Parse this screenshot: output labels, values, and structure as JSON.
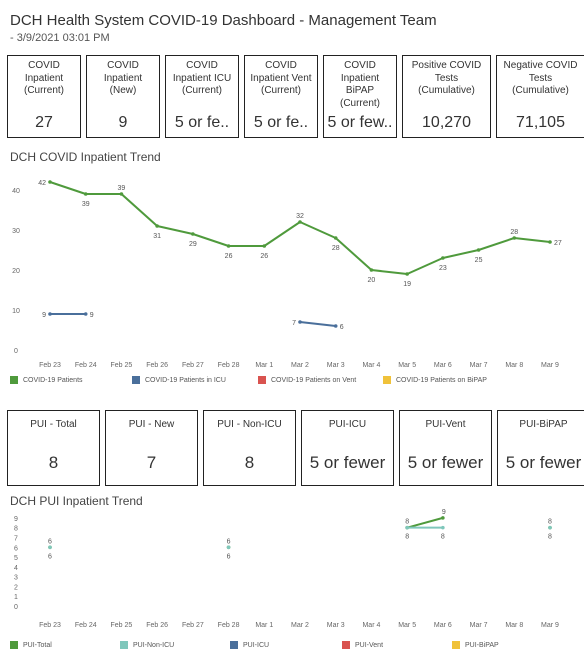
{
  "header": {
    "title": "DCH Health System COVID-19 Dashboard - Management Team",
    "subtitle": "- 3/9/2021 03:01 PM"
  },
  "kpi_row1": [
    {
      "label": "COVID\nInpatient\n(Current)",
      "value": "27"
    },
    {
      "label": "COVID\nInpatient\n(New)",
      "value": "9"
    },
    {
      "label": "COVID\nInpatient ICU\n(Current)",
      "value": "5 or fe.."
    },
    {
      "label": "COVID\nInpatient Vent\n(Current)",
      "value": "5 or fe.."
    },
    {
      "label": "COVID\nInpatient BiPAP\n(Current)",
      "value": "5 or few.."
    },
    {
      "label": "Positive COVID\nTests\n(Cumulative)",
      "value": "10,270"
    },
    {
      "label": "Negative COVID\nTests\n(Cumulative)",
      "value": "71,105"
    }
  ],
  "kpi_row2": [
    {
      "label": "PUI - Total",
      "value": "8"
    },
    {
      "label": "PUI - New",
      "value": "7"
    },
    {
      "label": "PUI - Non-ICU",
      "value": "8"
    },
    {
      "label": "PUI-ICU",
      "value": "5 or fewer"
    },
    {
      "label": "PUI-Vent",
      "value": "5 or fewer"
    },
    {
      "label": "PUI-BiPAP",
      "value": "5 or fewer"
    }
  ],
  "colors": {
    "green": "#4f9a3c",
    "blue": "#4a6f9b",
    "red": "#d9534f",
    "yellow": "#f0c23a",
    "teal": "#7fc7bb"
  },
  "chart_data": [
    {
      "type": "line",
      "title": "DCH COVID Inpatient Trend",
      "categories": [
        "Feb 23",
        "Feb 24",
        "Feb 25",
        "Feb 26",
        "Feb 27",
        "Feb 28",
        "Mar 1",
        "Mar 2",
        "Mar 3",
        "Mar 4",
        "Mar 5",
        "Mar 6",
        "Mar 7",
        "Mar 8",
        "Mar 9"
      ],
      "yticks": [
        0,
        10,
        20,
        30,
        40
      ],
      "ylim": [
        0,
        43
      ],
      "grid": false,
      "legend_position": "bottom",
      "series": [
        {
          "name": "COVID-19 Patients",
          "color": "#4f9a3c",
          "values": [
            42,
            39,
            39,
            31,
            29,
            26,
            26,
            32,
            28,
            20,
            19,
            23,
            25,
            28,
            27
          ]
        },
        {
          "name": "COVID-19 Patients in ICU",
          "color": "#4a6f9b",
          "values": [
            9,
            9,
            null,
            null,
            null,
            null,
            null,
            7,
            6,
            null,
            null,
            null,
            null,
            null,
            null
          ]
        },
        {
          "name": "COVID-19 Patients on Vent",
          "color": "#d9534f",
          "values": [
            null,
            null,
            null,
            null,
            null,
            null,
            null,
            null,
            null,
            null,
            null,
            null,
            null,
            null,
            null
          ]
        },
        {
          "name": "COVID-19 Patients on BiPAP",
          "color": "#f0c23a",
          "values": [
            null,
            null,
            null,
            null,
            null,
            null,
            null,
            null,
            null,
            null,
            null,
            null,
            null,
            null,
            null
          ]
        }
      ]
    },
    {
      "type": "line",
      "title": "DCH PUI Inpatient Trend",
      "categories": [
        "Feb 23",
        "Feb 24",
        "Feb 25",
        "Feb 26",
        "Feb 27",
        "Feb 28",
        "Mar 1",
        "Mar 2",
        "Mar 3",
        "Mar 4",
        "Mar 5",
        "Mar 6",
        "Mar 7",
        "Mar 8",
        "Mar 9"
      ],
      "yticks": [
        0,
        1,
        2,
        3,
        4,
        5,
        6,
        7,
        8,
        9
      ],
      "ylim": [
        0,
        9.5
      ],
      "grid": false,
      "legend_position": "bottom",
      "series": [
        {
          "name": "PUI-Total",
          "color": "#4f9a3c",
          "values": [
            6,
            null,
            null,
            null,
            null,
            6,
            null,
            null,
            null,
            null,
            8,
            9,
            null,
            null,
            8
          ]
        },
        {
          "name": "PUI-Non-ICU",
          "color": "#7fc7bb",
          "values": [
            6,
            null,
            null,
            null,
            null,
            6,
            null,
            null,
            null,
            null,
            8,
            8,
            null,
            null,
            8
          ]
        },
        {
          "name": "PUI-ICU",
          "color": "#4a6f9b",
          "values": [
            null,
            null,
            null,
            null,
            null,
            null,
            null,
            null,
            null,
            null,
            null,
            null,
            null,
            null,
            null
          ]
        },
        {
          "name": "PUI-Vent",
          "color": "#d9534f",
          "values": [
            null,
            null,
            null,
            null,
            null,
            null,
            null,
            null,
            null,
            null,
            null,
            null,
            null,
            null,
            null
          ]
        },
        {
          "name": "PUI-BiPAP",
          "color": "#f0c23a",
          "values": [
            null,
            null,
            null,
            null,
            null,
            null,
            null,
            null,
            null,
            null,
            null,
            null,
            null,
            null,
            null
          ]
        }
      ]
    }
  ]
}
